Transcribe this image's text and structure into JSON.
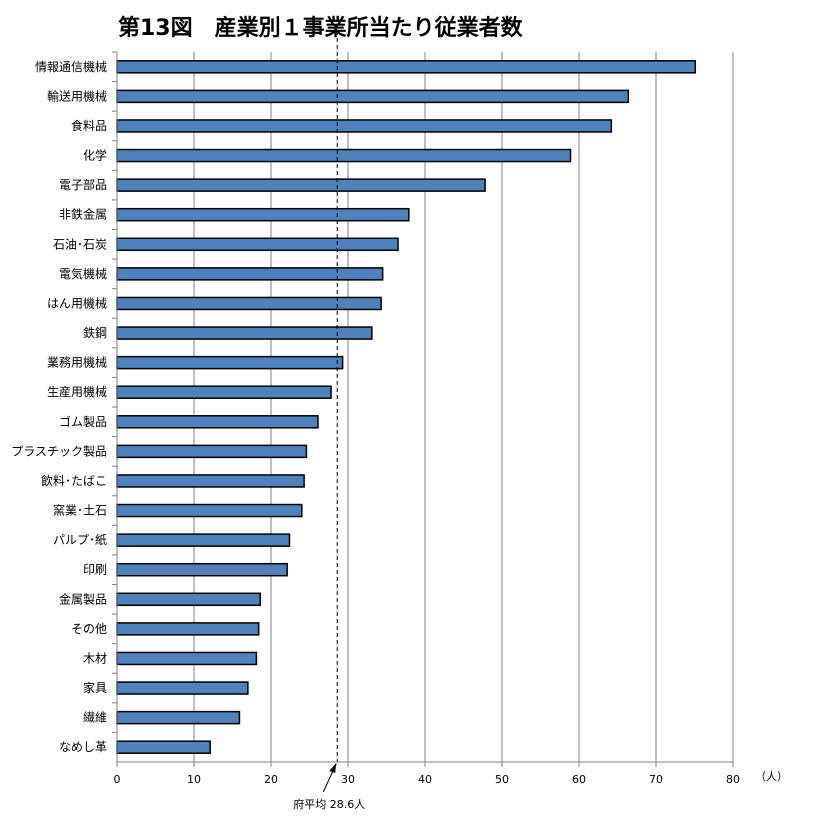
{
  "chart_data": {
    "type": "bar",
    "orientation": "horizontal",
    "title": "第13図　産業別１事業所当たり従業者数",
    "categories": [
      "情報通信機械",
      "輸送用機械",
      "食料品",
      "化学",
      "電子部品",
      "非鉄金属",
      "石油･石炭",
      "電気機械",
      "はん用機械",
      "鉄鋼",
      "業務用機械",
      "生産用機械",
      "ゴム製品",
      "プラスチック製品",
      "飲料･たばこ",
      "窯業･土石",
      "パルプ･紙",
      "印刷",
      "金属製品",
      "その他",
      "木材",
      "家具",
      "繊維",
      "なめし革"
    ],
    "values": [
      75.1,
      66.4,
      64.2,
      58.9,
      47.8,
      37.9,
      36.5,
      34.5,
      34.3,
      33.1,
      29.3,
      27.8,
      26.1,
      24.6,
      24.3,
      24.0,
      22.4,
      22.1,
      18.6,
      18.4,
      18.1,
      17.0,
      15.9,
      12.1
    ],
    "xlim": [
      0,
      80
    ],
    "xticks": [
      "0",
      "10",
      "20",
      "30",
      "40",
      "50",
      "60",
      "70",
      "80"
    ],
    "unit_label": "（人）",
    "grid": true,
    "average": {
      "value": 28.6,
      "label": "府平均  28.6人"
    },
    "colors": {
      "bar_fill": "#4f81bd",
      "bar_stroke": "#000000",
      "grid": "#808080"
    }
  }
}
